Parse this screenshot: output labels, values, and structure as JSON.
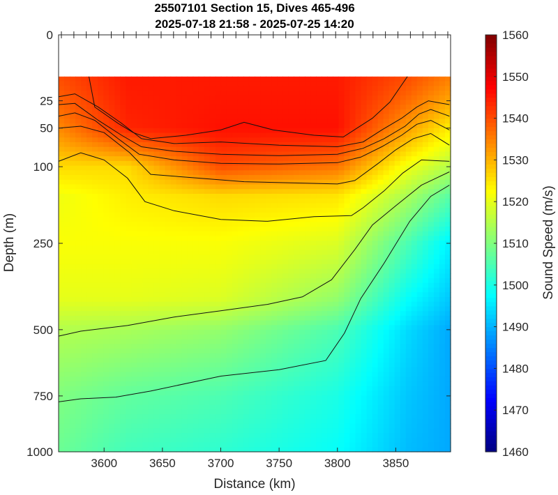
{
  "chart_data": {
    "type": "heatmap",
    "title": [
      "25507101 Section 15, Dives 465-496",
      "2025-07-18 21:58 - 2025-07-25 14:20"
    ],
    "xlabel": "Distance (km)",
    "ylabel": "Depth (m)",
    "colorbar_label": "Sound Speed (m/s)",
    "xlim": [
      3561,
      3897
    ],
    "x_ticks": [
      3600,
      3650,
      3700,
      3750,
      3800,
      3850
    ],
    "y_scale": "sqrt",
    "ylim": [
      0,
      1000
    ],
    "y_ticks": [
      0,
      25,
      50,
      100,
      250,
      500,
      750,
      1000
    ],
    "clim": [
      1460,
      1560
    ],
    "c_ticks": [
      1460,
      1470,
      1480,
      1490,
      1500,
      1510,
      1520,
      1530,
      1540,
      1550,
      1560
    ],
    "colormap": "jet",
    "grid": false,
    "data_top_depth": 10,
    "dive_marks_at_top": 32,
    "contour_levels": [
      1545,
      1540,
      1535,
      1530,
      1525,
      1520,
      1515,
      1510
    ],
    "contours": [
      {
        "level": 1545,
        "points": [
          [
            3587,
            10
          ],
          [
            3592,
            30
          ],
          [
            3612,
            45
          ],
          [
            3625,
            55
          ],
          [
            3640,
            62
          ],
          [
            3670,
            58
          ],
          [
            3700,
            52
          ],
          [
            3720,
            44
          ],
          [
            3745,
            52
          ],
          [
            3780,
            58
          ],
          [
            3805,
            60
          ],
          [
            3830,
            40
          ],
          [
            3845,
            26
          ],
          [
            3860,
            10
          ]
        ]
      },
      {
        "level": 1540,
        "points": [
          [
            3561,
            22
          ],
          [
            3575,
            20
          ],
          [
            3595,
            30
          ],
          [
            3615,
            45
          ],
          [
            3632,
            62
          ],
          [
            3660,
            68
          ],
          [
            3700,
            66
          ],
          [
            3750,
            70
          ],
          [
            3800,
            72
          ],
          [
            3822,
            66
          ],
          [
            3838,
            52
          ],
          [
            3855,
            40
          ],
          [
            3868,
            30
          ],
          [
            3878,
            25
          ],
          [
            3896,
            28
          ]
        ]
      },
      {
        "level": 1535,
        "points": [
          [
            3561,
            28
          ],
          [
            3575,
            27
          ],
          [
            3595,
            42
          ],
          [
            3615,
            58
          ],
          [
            3632,
            72
          ],
          [
            3660,
            78
          ],
          [
            3700,
            82
          ],
          [
            3750,
            84
          ],
          [
            3800,
            82
          ],
          [
            3822,
            74
          ],
          [
            3840,
            62
          ],
          [
            3858,
            48
          ],
          [
            3870,
            36
          ],
          [
            3880,
            32
          ],
          [
            3896,
            38
          ]
        ]
      },
      {
        "level": 1530,
        "points": [
          [
            3561,
            38
          ],
          [
            3575,
            35
          ],
          [
            3592,
            42
          ],
          [
            3612,
            62
          ],
          [
            3630,
            82
          ],
          [
            3660,
            90
          ],
          [
            3700,
            95
          ],
          [
            3750,
            96
          ],
          [
            3800,
            94
          ],
          [
            3820,
            86
          ],
          [
            3838,
            72
          ],
          [
            3855,
            58
          ],
          [
            3868,
            46
          ],
          [
            3880,
            42
          ],
          [
            3896,
            52
          ]
        ]
      },
      {
        "level": 1525,
        "points": [
          [
            3561,
            50
          ],
          [
            3580,
            48
          ],
          [
            3600,
            55
          ],
          [
            3622,
            80
          ],
          [
            3640,
            112
          ],
          [
            3680,
            118
          ],
          [
            3720,
            124
          ],
          [
            3760,
            126
          ],
          [
            3800,
            128
          ],
          [
            3815,
            122
          ],
          [
            3835,
            95
          ],
          [
            3850,
            76
          ],
          [
            3865,
            62
          ],
          [
            3880,
            56
          ],
          [
            3896,
            70
          ]
        ]
      },
      {
        "level": 1520,
        "points": [
          [
            3561,
            92
          ],
          [
            3580,
            80
          ],
          [
            3600,
            90
          ],
          [
            3620,
            118
          ],
          [
            3635,
            160
          ],
          [
            3660,
            178
          ],
          [
            3700,
            196
          ],
          [
            3740,
            200
          ],
          [
            3780,
            190
          ],
          [
            3812,
            188
          ],
          [
            3822,
            172
          ],
          [
            3840,
            140
          ],
          [
            3856,
            110
          ],
          [
            3872,
            90
          ],
          [
            3896,
            92
          ]
        ]
      },
      {
        "level": 1515,
        "points": [
          [
            3561,
            522
          ],
          [
            3580,
            505
          ],
          [
            3620,
            486
          ],
          [
            3660,
            458
          ],
          [
            3700,
            438
          ],
          [
            3740,
            418
          ],
          [
            3770,
            395
          ],
          [
            3795,
            345
          ],
          [
            3815,
            265
          ],
          [
            3830,
            208
          ],
          [
            3850,
            168
          ],
          [
            3872,
            130
          ],
          [
            3896,
            108
          ]
        ]
      },
      {
        "level": 1510,
        "points": [
          [
            3561,
            775
          ],
          [
            3580,
            762
          ],
          [
            3610,
            755
          ],
          [
            3640,
            730
          ],
          [
            3700,
            670
          ],
          [
            3750,
            645
          ],
          [
            3790,
            610
          ],
          [
            3806,
            512
          ],
          [
            3820,
            400
          ],
          [
            3840,
            300
          ],
          [
            3862,
            200
          ],
          [
            3880,
            150
          ],
          [
            3896,
            130
          ]
        ]
      }
    ],
    "field_anchors": [
      {
        "depth": 10,
        "x": [
          3561,
          3620,
          3700,
          3800,
          3860,
          3897
        ],
        "value": [
          1540,
          1545,
          1545,
          1545,
          1540,
          1535
        ]
      },
      {
        "depth": 50,
        "x": [
          3561,
          3620,
          3700,
          3800,
          3860,
          3897
        ],
        "value": [
          1534,
          1544,
          1546,
          1546,
          1532,
          1524
        ]
      },
      {
        "depth": 100,
        "x": [
          3561,
          3620,
          3700,
          3800,
          3860,
          3897
        ],
        "value": [
          1526,
          1526,
          1540,
          1536,
          1521,
          1515
        ]
      },
      {
        "depth": 150,
        "x": [
          3561,
          3620,
          3700,
          3800,
          3860,
          3897
        ],
        "value": [
          1521,
          1524,
          1526,
          1525,
          1514,
          1506
        ]
      },
      {
        "depth": 250,
        "x": [
          3561,
          3620,
          3700,
          3800,
          3860,
          3897
        ],
        "value": [
          1522,
          1522,
          1522,
          1519,
          1505,
          1496
        ]
      },
      {
        "depth": 400,
        "x": [
          3561,
          3620,
          3700,
          3800,
          3860,
          3897
        ],
        "value": [
          1520,
          1520,
          1519,
          1512,
          1498,
          1492
        ]
      },
      {
        "depth": 500,
        "x": [
          3561,
          3620,
          3700,
          3800,
          3860,
          3897
        ],
        "value": [
          1515,
          1514,
          1512,
          1505,
          1494,
          1489
        ]
      },
      {
        "depth": 750,
        "x": [
          3561,
          3620,
          3700,
          3800,
          3860,
          3897
        ],
        "value": [
          1510,
          1507,
          1505,
          1500,
          1492,
          1489
        ]
      },
      {
        "depth": 1000,
        "x": [
          3561,
          3620,
          3700,
          3800,
          3860,
          3897
        ],
        "value": [
          1508,
          1504,
          1502,
          1498,
          1491,
          1489
        ]
      }
    ]
  }
}
